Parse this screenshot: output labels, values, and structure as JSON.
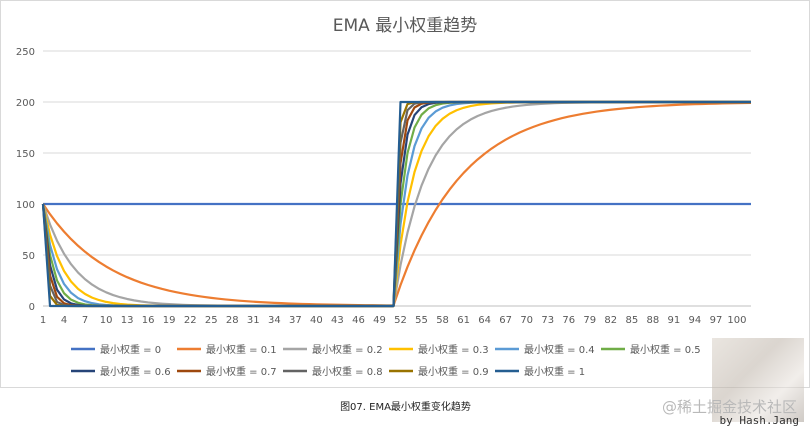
{
  "chart_data": {
    "type": "line",
    "title": "EMA 最小权重趋势",
    "xlabel": "",
    "ylabel": "",
    "ylim": [
      0,
      250
    ],
    "yticks": [
      0,
      50,
      100,
      150,
      200,
      250
    ],
    "xlim": [
      1,
      102
    ],
    "xticks": [
      1,
      4,
      7,
      10,
      13,
      16,
      19,
      22,
      25,
      28,
      31,
      34,
      37,
      40,
      43,
      46,
      49,
      52,
      55,
      58,
      61,
      64,
      67,
      70,
      73,
      76,
      79,
      82,
      85,
      88,
      91,
      94,
      97,
      100
    ],
    "grid": true,
    "legend_position": "bottom",
    "input_signal": {
      "x_start": 1,
      "x_step": 52,
      "low": 100,
      "high": 200
    },
    "series": [
      {
        "name": "最小权重 = 0",
        "weight": 0,
        "color": "#4472c4"
      },
      {
        "name": "最小权重 = 0.1",
        "weight": 0.1,
        "color": "#ed7d31"
      },
      {
        "name": "最小权重 = 0.2",
        "weight": 0.2,
        "color": "#a5a5a5"
      },
      {
        "name": "最小权重 = 0.3",
        "weight": 0.3,
        "color": "#ffc000"
      },
      {
        "name": "最小权重 = 0.4",
        "weight": 0.4,
        "color": "#5b9bd5"
      },
      {
        "name": "最小权重 = 0.5",
        "weight": 0.5,
        "color": "#70ad47"
      },
      {
        "name": "最小权重 = 0.6",
        "weight": 0.6,
        "color": "#264478"
      },
      {
        "name": "最小权重 = 0.7",
        "weight": 0.7,
        "color": "#9e480e"
      },
      {
        "name": "最小权重 = 0.8",
        "weight": 0.8,
        "color": "#636363"
      },
      {
        "name": "最小权重 = 0.9",
        "weight": 0.9,
        "color": "#997300"
      },
      {
        "name": "最小权重 = 1",
        "weight": 1,
        "color": "#255e91"
      }
    ]
  },
  "caption": "图07. EMA最小权重变化趋势",
  "watermark": "@稀土掘金技术社区",
  "byline": "by Hash.Jang"
}
